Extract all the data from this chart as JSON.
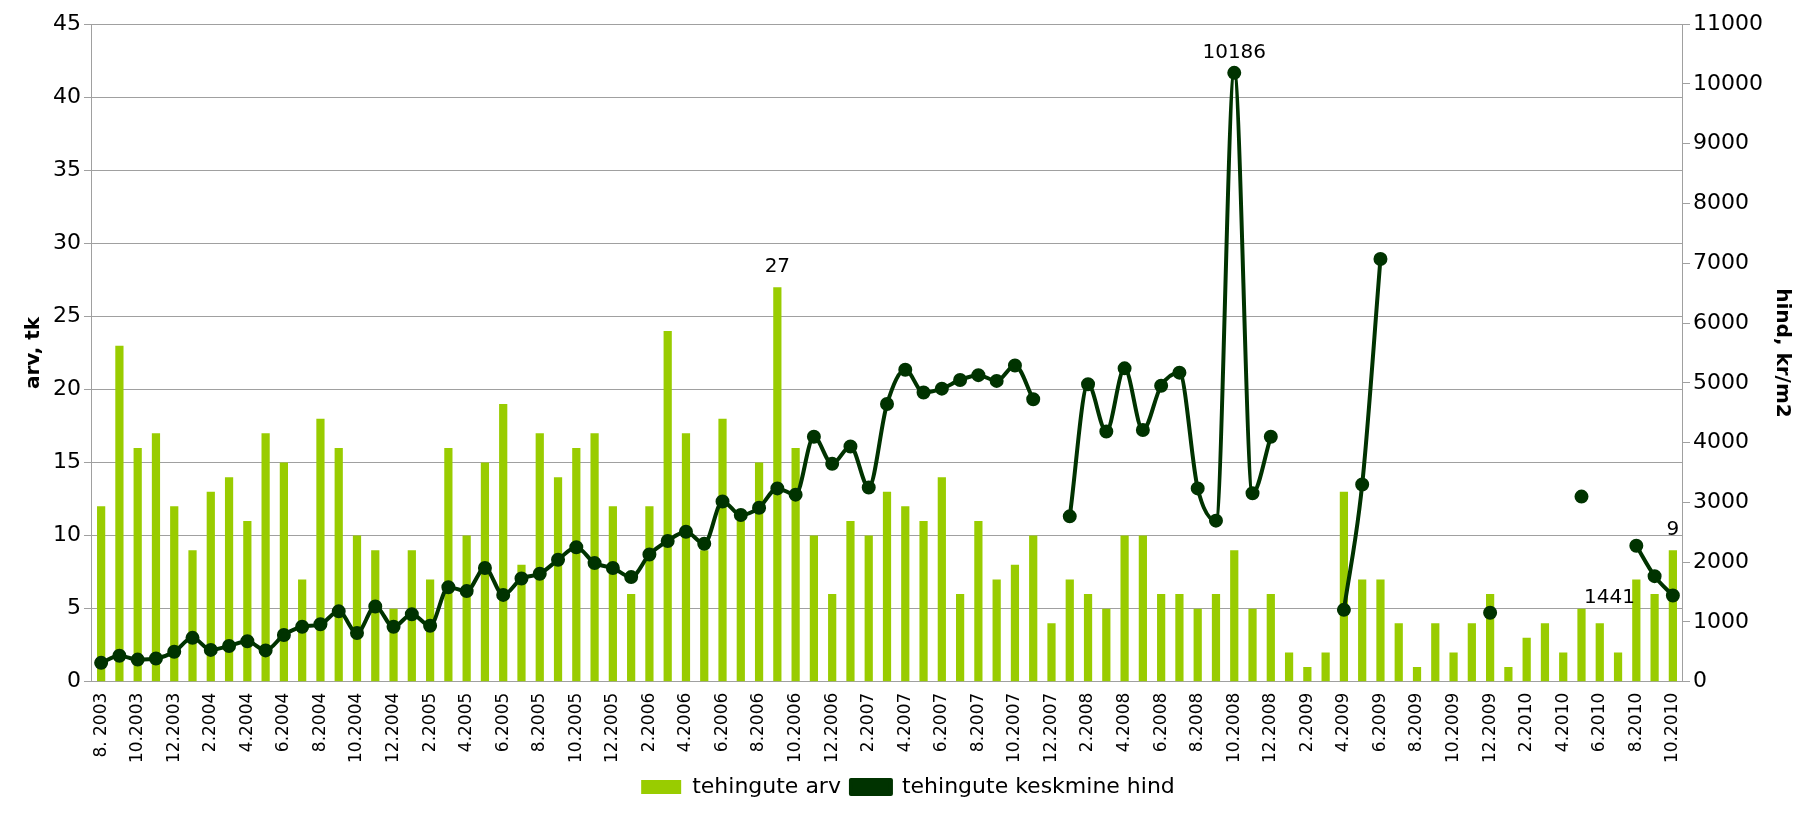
{
  "chart_data": {
    "type": "bar",
    "xlabel": null,
    "ylabel": "arv, tk",
    "y2label": "hind, kr/m2",
    "categories": [
      "8. 2003",
      null,
      "10.2003",
      null,
      "12.2003",
      null,
      "2.2004",
      null,
      "4.2004",
      null,
      "6.2004",
      null,
      "8.2004",
      null,
      "10.2004",
      null,
      "12.2004",
      null,
      "2.2005",
      null,
      "4.2005",
      null,
      "6.2005",
      null,
      "8.2005",
      null,
      "10.2005",
      null,
      "12.2005",
      null,
      "2.2006",
      null,
      "4.2006",
      null,
      "6.2006",
      null,
      "8.2006",
      null,
      "10.2006",
      null,
      "12.2006",
      null,
      "2.2007",
      null,
      "4.2007",
      null,
      "6.2007",
      null,
      "8.2007",
      null,
      "10.2007",
      null,
      "12.2007",
      null,
      "2.2008",
      null,
      "4.2008",
      null,
      "6.2008",
      null,
      "8.2008",
      null,
      "10.2008",
      null,
      "12.2008",
      null,
      "2.2009",
      null,
      "4.2009",
      null,
      "6.2009",
      null,
      "8.2009",
      null,
      "10.2009",
      null,
      "12.2009",
      null,
      "2.2010",
      null,
      "4.2010",
      null,
      "6.2010",
      null,
      "8.2010",
      null,
      "10.2010"
    ],
    "series": [
      {
        "name": "tehingute arv",
        "color": "#99cc00",
        "values": [
          12,
          23,
          16,
          17,
          12,
          9,
          13,
          14,
          11,
          17,
          15,
          7,
          18,
          16,
          10,
          9,
          5,
          9,
          7,
          16,
          10,
          15,
          19,
          8,
          17,
          14,
          16,
          17,
          12,
          6,
          12,
          24,
          17,
          9,
          18,
          11,
          15,
          27,
          16,
          10,
          6,
          11,
          10,
          13,
          12,
          11,
          14,
          6,
          11,
          7,
          8,
          10,
          4,
          7,
          6,
          5,
          10,
          10,
          6,
          6,
          5,
          6,
          9,
          5,
          6,
          2,
          1,
          2,
          13,
          7,
          7,
          4,
          1,
          4,
          2,
          4,
          6,
          1,
          3,
          4,
          2,
          5,
          4,
          2,
          7,
          6,
          9
        ],
        "value_labels": [
          null,
          null,
          null,
          null,
          null,
          null,
          null,
          null,
          null,
          null,
          null,
          null,
          null,
          null,
          null,
          null,
          null,
          null,
          null,
          null,
          null,
          null,
          null,
          null,
          null,
          null,
          null,
          null,
          null,
          null,
          null,
          null,
          null,
          null,
          null,
          null,
          null,
          "27",
          null,
          null,
          null,
          null,
          null,
          null,
          null,
          null,
          null,
          null,
          null,
          null,
          null,
          null,
          null,
          null,
          null,
          null,
          null,
          null,
          null,
          null,
          null,
          null,
          null,
          null,
          null,
          null,
          null,
          null,
          null,
          null,
          null,
          null,
          null,
          null,
          null,
          null,
          null,
          null,
          null,
          null,
          null,
          null,
          null,
          null,
          null,
          null,
          "9"
        ]
      },
      {
        "name": "tehingute keskmine hind",
        "type": "line",
        "axis": "y2",
        "color": "#003300",
        "values": [
          315,
          435,
          370,
          387,
          500,
          734,
          532,
          597,
          677,
          524,
          782,
          919,
          960,
          1177,
          815,
          1258,
          919,
          1129,
          935,
          1581,
          1516,
          1903,
          1452,
          1726,
          1806,
          2040,
          2250,
          1984,
          1903,
          1750,
          2129,
          2355,
          2508,
          2307,
          3016,
          2790,
          2911,
          3234,
          3129,
          4097,
          3645,
          3936,
          3250,
          4645,
          5218,
          4839,
          4903,
          5048,
          5129,
          5032,
          5290,
          4726,
          null,
          2766,
          4976,
          4186,
          5242,
          4210,
          4952,
          5170,
          3234,
          2694,
          10186,
          3153,
          4097,
          null,
          null,
          null,
          1202,
          3298,
          7073,
          null,
          null,
          null,
          null,
          null,
          1153,
          null,
          null,
          null,
          null,
          3097,
          null,
          null,
          2274,
          1766,
          1441
        ],
        "value_labels": [
          null,
          null,
          null,
          null,
          null,
          null,
          null,
          null,
          null,
          null,
          null,
          null,
          null,
          null,
          null,
          null,
          null,
          null,
          null,
          null,
          null,
          null,
          null,
          null,
          null,
          null,
          null,
          null,
          null,
          null,
          null,
          null,
          null,
          null,
          null,
          null,
          null,
          null,
          null,
          null,
          null,
          null,
          null,
          null,
          null,
          null,
          null,
          null,
          null,
          null,
          null,
          null,
          null,
          null,
          null,
          null,
          null,
          null,
          null,
          null,
          null,
          null,
          "10186",
          null,
          null,
          null,
          null,
          null,
          null,
          null,
          null,
          null,
          null,
          null,
          null,
          null,
          null,
          null,
          null,
          null,
          null,
          null,
          null,
          null,
          null,
          null,
          "1441"
        ]
      }
    ],
    "ylim": [
      0,
      45
    ],
    "yticks": [
      0,
      5,
      10,
      15,
      20,
      25,
      30,
      35,
      40,
      45
    ],
    "y2lim": [
      0,
      11000
    ],
    "y2ticks": [
      0,
      1000,
      2000,
      3000,
      4000,
      5000,
      6000,
      7000,
      8000,
      9000,
      10000,
      11000
    ],
    "grid": "y",
    "legend": "bottom",
    "marker": "circle",
    "line_style": "solid"
  }
}
